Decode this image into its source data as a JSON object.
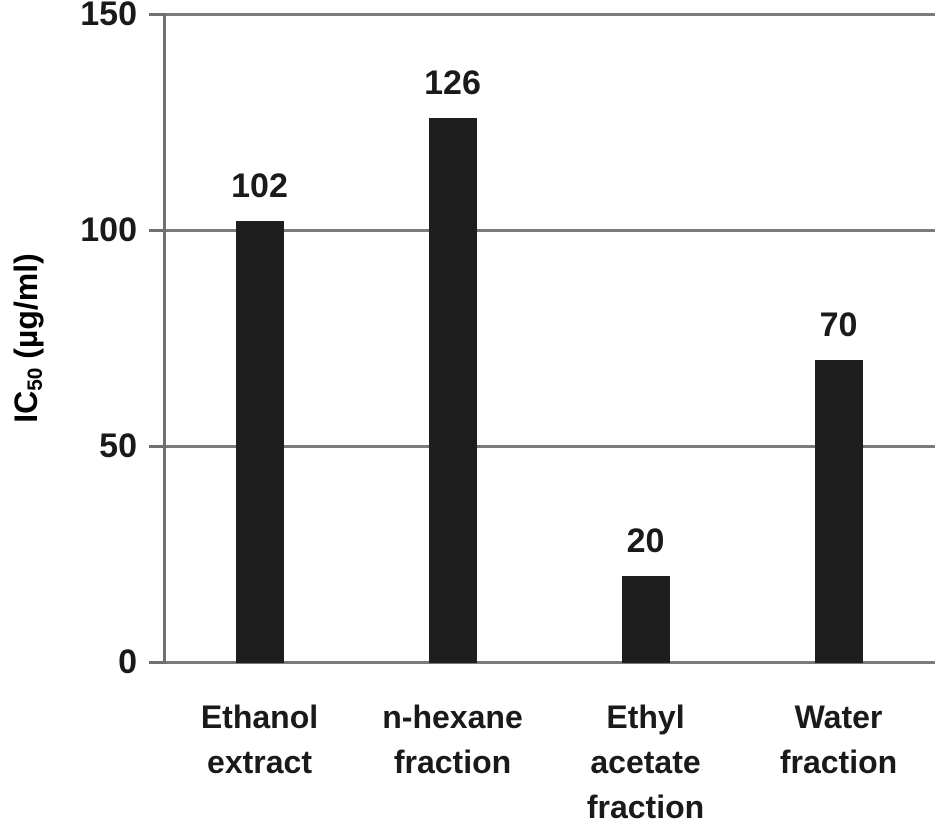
{
  "chart_data": {
    "type": "bar",
    "categories": [
      "Ethanol extract",
      "n-hexane fraction",
      "Ethyl acetate fraction",
      "Water fraction"
    ],
    "values": [
      102,
      126,
      20,
      70
    ],
    "value_labels": [
      "102",
      "126",
      "20",
      "70"
    ],
    "xlabel": "",
    "ylabel": {
      "prefix": "IC",
      "sub": "50",
      "suffix": " (µg/ml)",
      "text": "IC50 (µg/ml)"
    },
    "yticks": [
      0,
      50,
      100,
      150
    ],
    "ylim": [
      0,
      150
    ],
    "grid": true,
    "legend": false,
    "colors": {
      "bar": "#1e1e1e",
      "gridline": "#7a7a7a",
      "axis": "#6f6f6f",
      "text": "#1a1a1a",
      "background": "#ffffff"
    }
  }
}
